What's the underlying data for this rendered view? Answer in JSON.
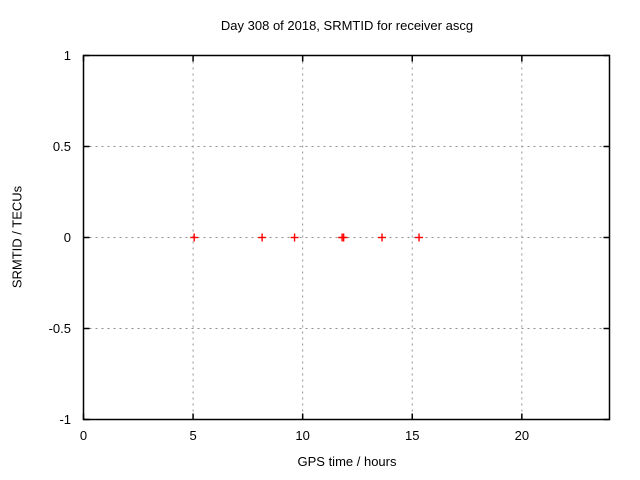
{
  "chart_data": {
    "type": "scatter",
    "title": "Day 308 of 2018, SRMTID for receiver ascg",
    "xlabel": "GPS time / hours",
    "ylabel": "SRMTID / TECUs",
    "xlim": [
      0,
      24
    ],
    "ylim": [
      -1,
      1
    ],
    "xticks": [
      0,
      5,
      10,
      15,
      20
    ],
    "xtick_labels": [
      "0",
      "5",
      "10",
      "15",
      "20"
    ],
    "yticks": [
      -1,
      -0.5,
      0,
      0.5,
      1
    ],
    "ytick_labels": [
      "-1",
      "-0.5",
      "0",
      "0.5",
      "1"
    ],
    "grid": true,
    "legend": "none",
    "marker": {
      "shape": "plus",
      "size": 4,
      "color": "#ff0000"
    },
    "series": [
      {
        "name": "SRMTID",
        "x": [
          5.05,
          8.15,
          9.63,
          11.8,
          11.87,
          13.62,
          15.31
        ],
        "y": [
          0,
          0,
          0,
          0,
          0,
          0,
          0
        ]
      }
    ]
  },
  "colors": {
    "background": "#ffffff",
    "border": "#000000",
    "grid": "#909090",
    "text": "#000000",
    "marker": "#ff0000"
  }
}
